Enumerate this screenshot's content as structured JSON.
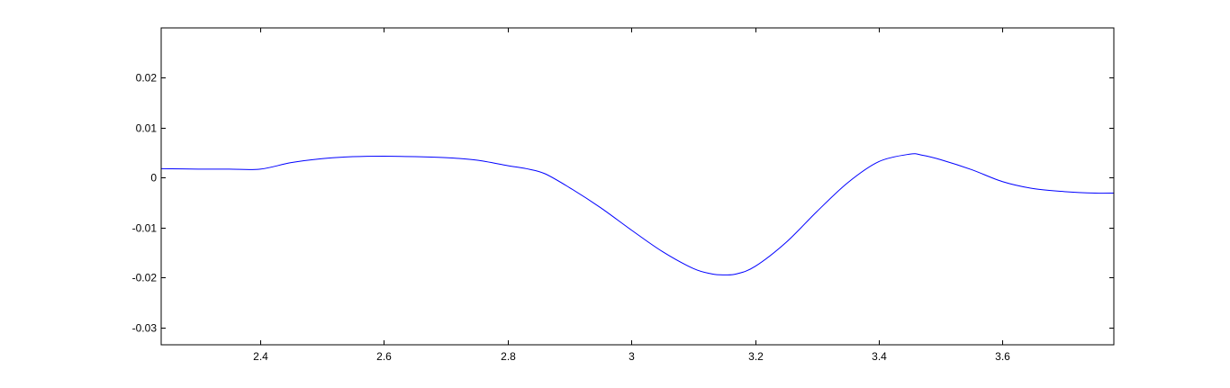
{
  "chart_data": {
    "type": "line",
    "title": "",
    "xlabel": "",
    "ylabel": "",
    "xlim": [
      2.24,
      3.78
    ],
    "ylim": [
      -0.0335,
      0.03
    ],
    "grid": false,
    "x_ticks": [
      2.4,
      2.6,
      2.8,
      3,
      3.2,
      3.4,
      3.6
    ],
    "x_tick_labels": [
      "2.4",
      "2.6",
      "2.8",
      "3",
      "3.2",
      "3.4",
      "3.6"
    ],
    "y_ticks": [
      0.02,
      0.01,
      0,
      -0.01,
      -0.02,
      -0.03
    ],
    "y_tick_labels": [
      "0.02",
      "0.01",
      "0",
      "-0.01",
      "-0.02",
      "-0.03"
    ],
    "line_color": "#0000ff",
    "axes_color": "#000000",
    "series": [
      {
        "x": [
          2.24,
          2.3,
          2.35,
          2.4,
          2.45,
          2.5,
          2.55,
          2.6,
          2.65,
          2.7,
          2.75,
          2.8,
          2.83,
          2.86,
          2.9,
          2.95,
          3.0,
          3.05,
          3.1,
          3.13,
          3.15,
          3.17,
          3.2,
          3.25,
          3.3,
          3.35,
          3.4,
          3.45,
          3.47,
          3.5,
          3.55,
          3.6,
          3.65,
          3.7,
          3.75,
          3.78
        ],
        "y": [
          0.0018,
          0.0017,
          0.0017,
          0.0017,
          0.003,
          0.0038,
          0.0042,
          0.0043,
          0.0042,
          0.004,
          0.0035,
          0.0024,
          0.0018,
          0.0008,
          -0.002,
          -0.006,
          -0.0105,
          -0.0148,
          -0.0182,
          -0.0193,
          -0.0195,
          -0.0193,
          -0.0178,
          -0.013,
          -0.0068,
          -0.001,
          0.0032,
          0.0047,
          0.0045,
          0.0036,
          0.0016,
          -0.0008,
          -0.0022,
          -0.0028,
          -0.0031,
          -0.0031
        ]
      }
    ]
  }
}
